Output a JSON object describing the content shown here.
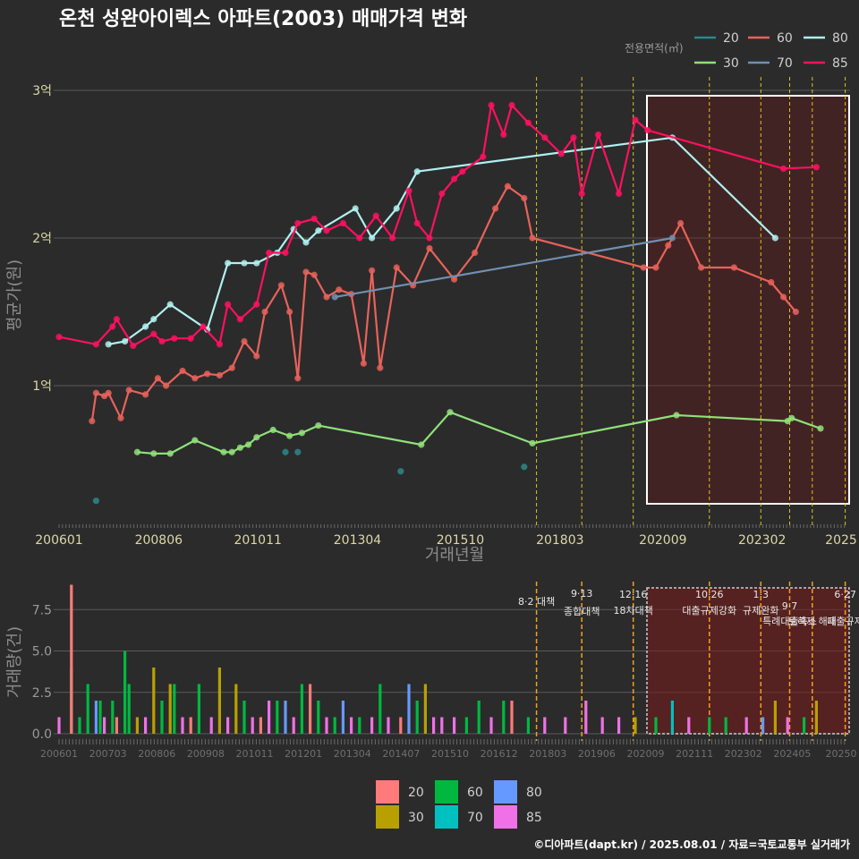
{
  "title": "온천 성완아이렉스 아파트(2003) 매매가격 변화",
  "credit": "©디아파트(dapt.kr) / 2025.08.01 / 자료=국토교통부 실거래가",
  "colors": {
    "bg": "#2b2b2b",
    "grid": "#5a5a5a",
    "s20": "#2a8a8a",
    "s30": "#90e07a",
    "s60": "#e8625a",
    "s70": "#7090b0",
    "s80": "#b0f0f0",
    "s85": "#ff1060",
    "v20": "#ff7a7a",
    "v30": "#b8a000",
    "v60": "#00b840",
    "v70": "#00c0c0",
    "v80": "#6699ff",
    "v85": "#f070e8"
  },
  "chart_data": [
    {
      "type": "line",
      "xlabel": "거래년월",
      "ylabel": "평균가(원)",
      "x_ticks": [
        "200601",
        "200806",
        "201011",
        "201304",
        "201510",
        "201803",
        "202009",
        "202302",
        "2025"
      ],
      "y_ticks": [
        "1억",
        "2억",
        "3억"
      ],
      "ylim": [
        0.2,
        3.2
      ],
      "legend_title": "전용면적(㎡)",
      "legend_labels": [
        "20",
        "30",
        "60",
        "70",
        "80",
        "85"
      ],
      "series": [
        {
          "name": "20",
          "color_key": "s20",
          "points": [
            [
              2006.9,
              0.22
            ],
            [
              2011.5,
              0.55
            ],
            [
              2011.8,
              0.55
            ],
            [
              2014.3,
              0.42
            ],
            [
              2017.3,
              0.45
            ]
          ]
        },
        {
          "name": "30",
          "color_key": "s30",
          "points": [
            [
              2007.9,
              0.55
            ],
            [
              2008.3,
              0.54
            ],
            [
              2008.7,
              0.54
            ],
            [
              2009.3,
              0.63
            ],
            [
              2010.0,
              0.55
            ],
            [
              2010.2,
              0.55
            ],
            [
              2010.4,
              0.58
            ],
            [
              2010.6,
              0.6
            ],
            [
              2010.8,
              0.65
            ],
            [
              2011.2,
              0.7
            ],
            [
              2011.6,
              0.66
            ],
            [
              2011.9,
              0.68
            ],
            [
              2012.3,
              0.73
            ],
            [
              2014.8,
              0.6
            ],
            [
              2015.5,
              0.82
            ],
            [
              2017.5,
              0.61
            ],
            [
              2021.0,
              0.8
            ],
            [
              2023.7,
              0.76
            ],
            [
              2023.8,
              0.78
            ],
            [
              2024.5,
              0.71
            ]
          ]
        },
        {
          "name": "60",
          "color_key": "s60",
          "points": [
            [
              2006.8,
              0.76
            ],
            [
              2006.9,
              0.95
            ],
            [
              2007.1,
              0.93
            ],
            [
              2007.2,
              0.95
            ],
            [
              2007.5,
              0.78
            ],
            [
              2007.7,
              0.97
            ],
            [
              2008.1,
              0.94
            ],
            [
              2008.4,
              1.05
            ],
            [
              2008.6,
              1.0
            ],
            [
              2009.0,
              1.1
            ],
            [
              2009.3,
              1.05
            ],
            [
              2009.6,
              1.08
            ],
            [
              2009.9,
              1.07
            ],
            [
              2010.2,
              1.12
            ],
            [
              2010.5,
              1.3
            ],
            [
              2010.8,
              1.2
            ],
            [
              2011.0,
              1.5
            ],
            [
              2011.4,
              1.68
            ],
            [
              2011.6,
              1.5
            ],
            [
              2011.8,
              1.05
            ],
            [
              2012.0,
              1.77
            ],
            [
              2012.2,
              1.75
            ],
            [
              2012.5,
              1.6
            ],
            [
              2012.8,
              1.65
            ],
            [
              2013.1,
              1.62
            ],
            [
              2013.4,
              1.15
            ],
            [
              2013.6,
              1.78
            ],
            [
              2013.8,
              1.12
            ],
            [
              2014.2,
              1.8
            ],
            [
              2014.6,
              1.68
            ],
            [
              2015.0,
              1.93
            ],
            [
              2015.6,
              1.72
            ],
            [
              2016.1,
              1.9
            ],
            [
              2016.6,
              2.2
            ],
            [
              2016.9,
              2.35
            ],
            [
              2017.3,
              2.27
            ],
            [
              2017.5,
              2.0
            ],
            [
              2020.2,
              1.8
            ],
            [
              2020.5,
              1.8
            ],
            [
              2020.8,
              1.95
            ],
            [
              2021.1,
              2.1
            ],
            [
              2021.6,
              1.8
            ],
            [
              2022.4,
              1.8
            ],
            [
              2023.3,
              1.7
            ],
            [
              2023.6,
              1.6
            ],
            [
              2023.9,
              1.5
            ]
          ]
        },
        {
          "name": "70",
          "color_key": "s70",
          "points": [
            [
              2012.7,
              1.6
            ],
            [
              2020.9,
              2.0
            ]
          ]
        },
        {
          "name": "80",
          "color_key": "s80",
          "points": [
            [
              2007.2,
              1.28
            ],
            [
              2007.6,
              1.3
            ],
            [
              2008.1,
              1.4
            ],
            [
              2008.3,
              1.45
            ],
            [
              2008.7,
              1.55
            ],
            [
              2009.6,
              1.38
            ],
            [
              2010.1,
              1.83
            ],
            [
              2010.5,
              1.83
            ],
            [
              2010.8,
              1.83
            ],
            [
              2011.3,
              1.9
            ],
            [
              2011.7,
              2.06
            ],
            [
              2012.0,
              1.97
            ],
            [
              2012.3,
              2.05
            ],
            [
              2013.2,
              2.2
            ],
            [
              2013.6,
              2.0
            ],
            [
              2014.2,
              2.2
            ],
            [
              2014.7,
              2.45
            ],
            [
              2020.9,
              2.68
            ],
            [
              2023.4,
              2.0
            ]
          ]
        },
        {
          "name": "85",
          "color_key": "s85",
          "points": [
            [
              2006.0,
              1.33
            ],
            [
              2006.9,
              1.28
            ],
            [
              2007.3,
              1.4
            ],
            [
              2007.4,
              1.45
            ],
            [
              2007.8,
              1.27
            ],
            [
              2008.3,
              1.35
            ],
            [
              2008.5,
              1.3
            ],
            [
              2008.8,
              1.32
            ],
            [
              2009.2,
              1.32
            ],
            [
              2009.5,
              1.4
            ],
            [
              2009.9,
              1.28
            ],
            [
              2010.1,
              1.55
            ],
            [
              2010.4,
              1.45
            ],
            [
              2010.8,
              1.55
            ],
            [
              2011.1,
              1.9
            ],
            [
              2011.5,
              1.9
            ],
            [
              2011.8,
              2.1
            ],
            [
              2012.2,
              2.13
            ],
            [
              2012.5,
              2.05
            ],
            [
              2012.9,
              2.1
            ],
            [
              2013.3,
              2.0
            ],
            [
              2013.7,
              2.15
            ],
            [
              2014.1,
              2.0
            ],
            [
              2014.5,
              2.32
            ],
            [
              2014.7,
              2.1
            ],
            [
              2015.0,
              2.0
            ],
            [
              2015.3,
              2.3
            ],
            [
              2015.6,
              2.4
            ],
            [
              2015.8,
              2.45
            ],
            [
              2016.3,
              2.55
            ],
            [
              2016.5,
              2.9
            ],
            [
              2016.8,
              2.7
            ],
            [
              2017.0,
              2.9
            ],
            [
              2017.4,
              2.78
            ],
            [
              2017.8,
              2.68
            ],
            [
              2018.2,
              2.57
            ],
            [
              2018.5,
              2.68
            ],
            [
              2018.7,
              2.3
            ],
            [
              2019.1,
              2.7
            ],
            [
              2019.6,
              2.3
            ],
            [
              2020.0,
              2.8
            ],
            [
              2020.3,
              2.73
            ],
            [
              2023.6,
              2.47
            ],
            [
              2024.4,
              2.48
            ]
          ]
        }
      ]
    },
    {
      "type": "bar",
      "xlabel": "",
      "ylabel": "거래량(건)",
      "x_ticks": [
        "200601",
        "200703",
        "200806",
        "200908",
        "201011",
        "201201",
        "201304",
        "201407",
        "201510",
        "201612",
        "201803",
        "201906",
        "202009",
        "202111",
        "202302",
        "202405",
        "20250"
      ],
      "y_ticks": [
        "0.0",
        "2.5",
        "5.0",
        "7.5"
      ],
      "ylim": [
        0,
        9
      ],
      "legend_labels": [
        "20",
        "30",
        "60",
        "70",
        "80",
        "85"
      ],
      "bars": [
        [
          2006.0,
          "v85",
          1
        ],
        [
          2006.3,
          "v60",
          4
        ],
        [
          2006.3,
          "v20",
          9
        ],
        [
          2006.5,
          "v60",
          1
        ],
        [
          2006.7,
          "v60",
          3
        ],
        [
          2006.9,
          "v80",
          2
        ],
        [
          2007.0,
          "v60",
          2
        ],
        [
          2007.1,
          "v85",
          1
        ],
        [
          2007.3,
          "v60",
          2
        ],
        [
          2007.4,
          "v20",
          1
        ],
        [
          2007.6,
          "v60",
          5
        ],
        [
          2007.7,
          "v60",
          3
        ],
        [
          2007.9,
          "v30",
          1
        ],
        [
          2008.1,
          "v85",
          1
        ],
        [
          2008.3,
          "v30",
          4
        ],
        [
          2008.5,
          "v60",
          2
        ],
        [
          2008.7,
          "v30",
          3
        ],
        [
          2008.8,
          "v60",
          3
        ],
        [
          2009.0,
          "v85",
          1
        ],
        [
          2009.2,
          "v20",
          1
        ],
        [
          2009.4,
          "v60",
          3
        ],
        [
          2009.7,
          "v85",
          1
        ],
        [
          2009.9,
          "v30",
          4
        ],
        [
          2010.1,
          "v85",
          1
        ],
        [
          2010.3,
          "v30",
          3
        ],
        [
          2010.5,
          "v60",
          2
        ],
        [
          2010.7,
          "v85",
          1
        ],
        [
          2010.9,
          "v20",
          1
        ],
        [
          2011.1,
          "v85",
          2
        ],
        [
          2011.3,
          "v60",
          2
        ],
        [
          2011.5,
          "v80",
          2
        ],
        [
          2011.7,
          "v85",
          1
        ],
        [
          2011.9,
          "v60",
          3
        ],
        [
          2012.1,
          "v20",
          3
        ],
        [
          2012.3,
          "v60",
          2
        ],
        [
          2012.5,
          "v85",
          1
        ],
        [
          2012.7,
          "v60",
          1
        ],
        [
          2012.9,
          "v80",
          2
        ],
        [
          2013.1,
          "v85",
          1
        ],
        [
          2013.3,
          "v60",
          1
        ],
        [
          2013.6,
          "v85",
          1
        ],
        [
          2013.8,
          "v60",
          3
        ],
        [
          2014.0,
          "v85",
          1
        ],
        [
          2014.3,
          "v20",
          1
        ],
        [
          2014.5,
          "v80",
          3
        ],
        [
          2014.7,
          "v60",
          2
        ],
        [
          2014.9,
          "v30",
          3
        ],
        [
          2015.1,
          "v85",
          1
        ],
        [
          2015.3,
          "v85",
          1
        ],
        [
          2015.6,
          "v85",
          1
        ],
        [
          2015.9,
          "v60",
          1
        ],
        [
          2016.2,
          "v60",
          2
        ],
        [
          2016.5,
          "v85",
          1
        ],
        [
          2016.8,
          "v60",
          2
        ],
        [
          2017.0,
          "v20",
          2
        ],
        [
          2017.4,
          "v60",
          1
        ],
        [
          2017.8,
          "v85",
          1
        ],
        [
          2018.3,
          "v85",
          1
        ],
        [
          2018.8,
          "v85",
          2
        ],
        [
          2019.2,
          "v85",
          1
        ],
        [
          2019.6,
          "v85",
          1
        ],
        [
          2020.0,
          "v30",
          1
        ],
        [
          2020.5,
          "v60",
          1
        ],
        [
          2020.9,
          "v70",
          2
        ],
        [
          2021.3,
          "v85",
          1
        ],
        [
          2021.8,
          "v60",
          1
        ],
        [
          2022.2,
          "v60",
          1
        ],
        [
          2022.7,
          "v85",
          1
        ],
        [
          2023.1,
          "v80",
          1
        ],
        [
          2023.4,
          "v30",
          2
        ],
        [
          2023.7,
          "v85",
          1
        ],
        [
          2024.1,
          "v60",
          1
        ],
        [
          2024.4,
          "v30",
          2
        ]
      ]
    }
  ],
  "events": [
    {
      "x": 2017.6,
      "label": "8·2 대책",
      "sub": ""
    },
    {
      "x": 2018.7,
      "label": "9·13",
      "sub": "종합대책"
    },
    {
      "x": 2019.95,
      "label": "12·16",
      "sub": "18차대책"
    },
    {
      "x": 2021.8,
      "label": "10·26",
      "sub": "대출규제강화"
    },
    {
      "x": 2023.05,
      "label": "1·3",
      "sub": "규제완화"
    },
    {
      "x": 2023.75,
      "label": "9·7",
      "sub": "특례대출축소"
    },
    {
      "x": 2024.3,
      "label": "",
      "sub": "토허제 해제"
    },
    {
      "x": 2025.1,
      "label": "6·27",
      "sub": "대출규제"
    }
  ]
}
